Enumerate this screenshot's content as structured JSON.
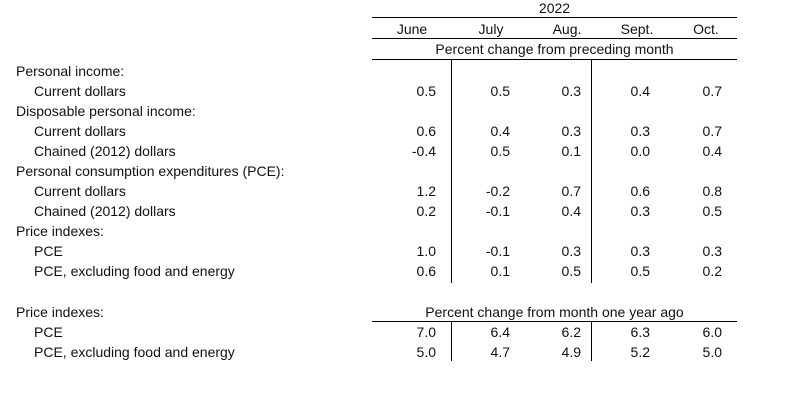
{
  "table": {
    "year": "2022",
    "months": [
      "June",
      "July",
      "Aug.",
      "Sept.",
      "Oct."
    ],
    "section1_caption": "Percent change from preceding month",
    "section2_caption": "Percent change from month one year ago",
    "section1_rows": [
      {
        "label": "Personal income:",
        "values": [
          "",
          "",
          "",
          "",
          ""
        ]
      },
      {
        "label": "Current dollars",
        "values": [
          "0.5",
          "0.5",
          "0.3",
          "0.4",
          "0.7"
        ]
      },
      {
        "label": "Disposable personal income:",
        "values": [
          "",
          "",
          "",
          "",
          ""
        ]
      },
      {
        "label": "Current dollars",
        "values": [
          "0.6",
          "0.4",
          "0.3",
          "0.3",
          "0.7"
        ]
      },
      {
        "label": "Chained (2012) dollars",
        "values": [
          "-0.4",
          "0.5",
          "0.1",
          "0.0",
          "0.4"
        ]
      },
      {
        "label": "Personal consumption expenditures (PCE):",
        "values": [
          "",
          "",
          "",
          "",
          ""
        ]
      },
      {
        "label": "Current dollars",
        "values": [
          "1.2",
          "-0.2",
          "0.7",
          "0.6",
          "0.8"
        ]
      },
      {
        "label": "Chained (2012) dollars",
        "values": [
          "0.2",
          "-0.1",
          "0.4",
          "0.3",
          "0.5"
        ]
      },
      {
        "label": "Price indexes:",
        "values": [
          "",
          "",
          "",
          "",
          ""
        ]
      },
      {
        "label": "PCE",
        "values": [
          "1.0",
          "-0.1",
          "0.3",
          "0.3",
          "0.3"
        ]
      },
      {
        "label": "PCE, excluding food and energy",
        "values": [
          "0.6",
          "0.1",
          "0.5",
          "0.5",
          "0.2"
        ]
      }
    ],
    "section2_heading": "Price indexes:",
    "section2_rows": [
      {
        "label": "PCE",
        "values": [
          "7.0",
          "6.4",
          "6.2",
          "6.3",
          "6.0"
        ]
      },
      {
        "label": "PCE, excluding food and energy",
        "values": [
          "5.0",
          "4.7",
          "4.9",
          "5.2",
          "5.0"
        ]
      }
    ]
  }
}
